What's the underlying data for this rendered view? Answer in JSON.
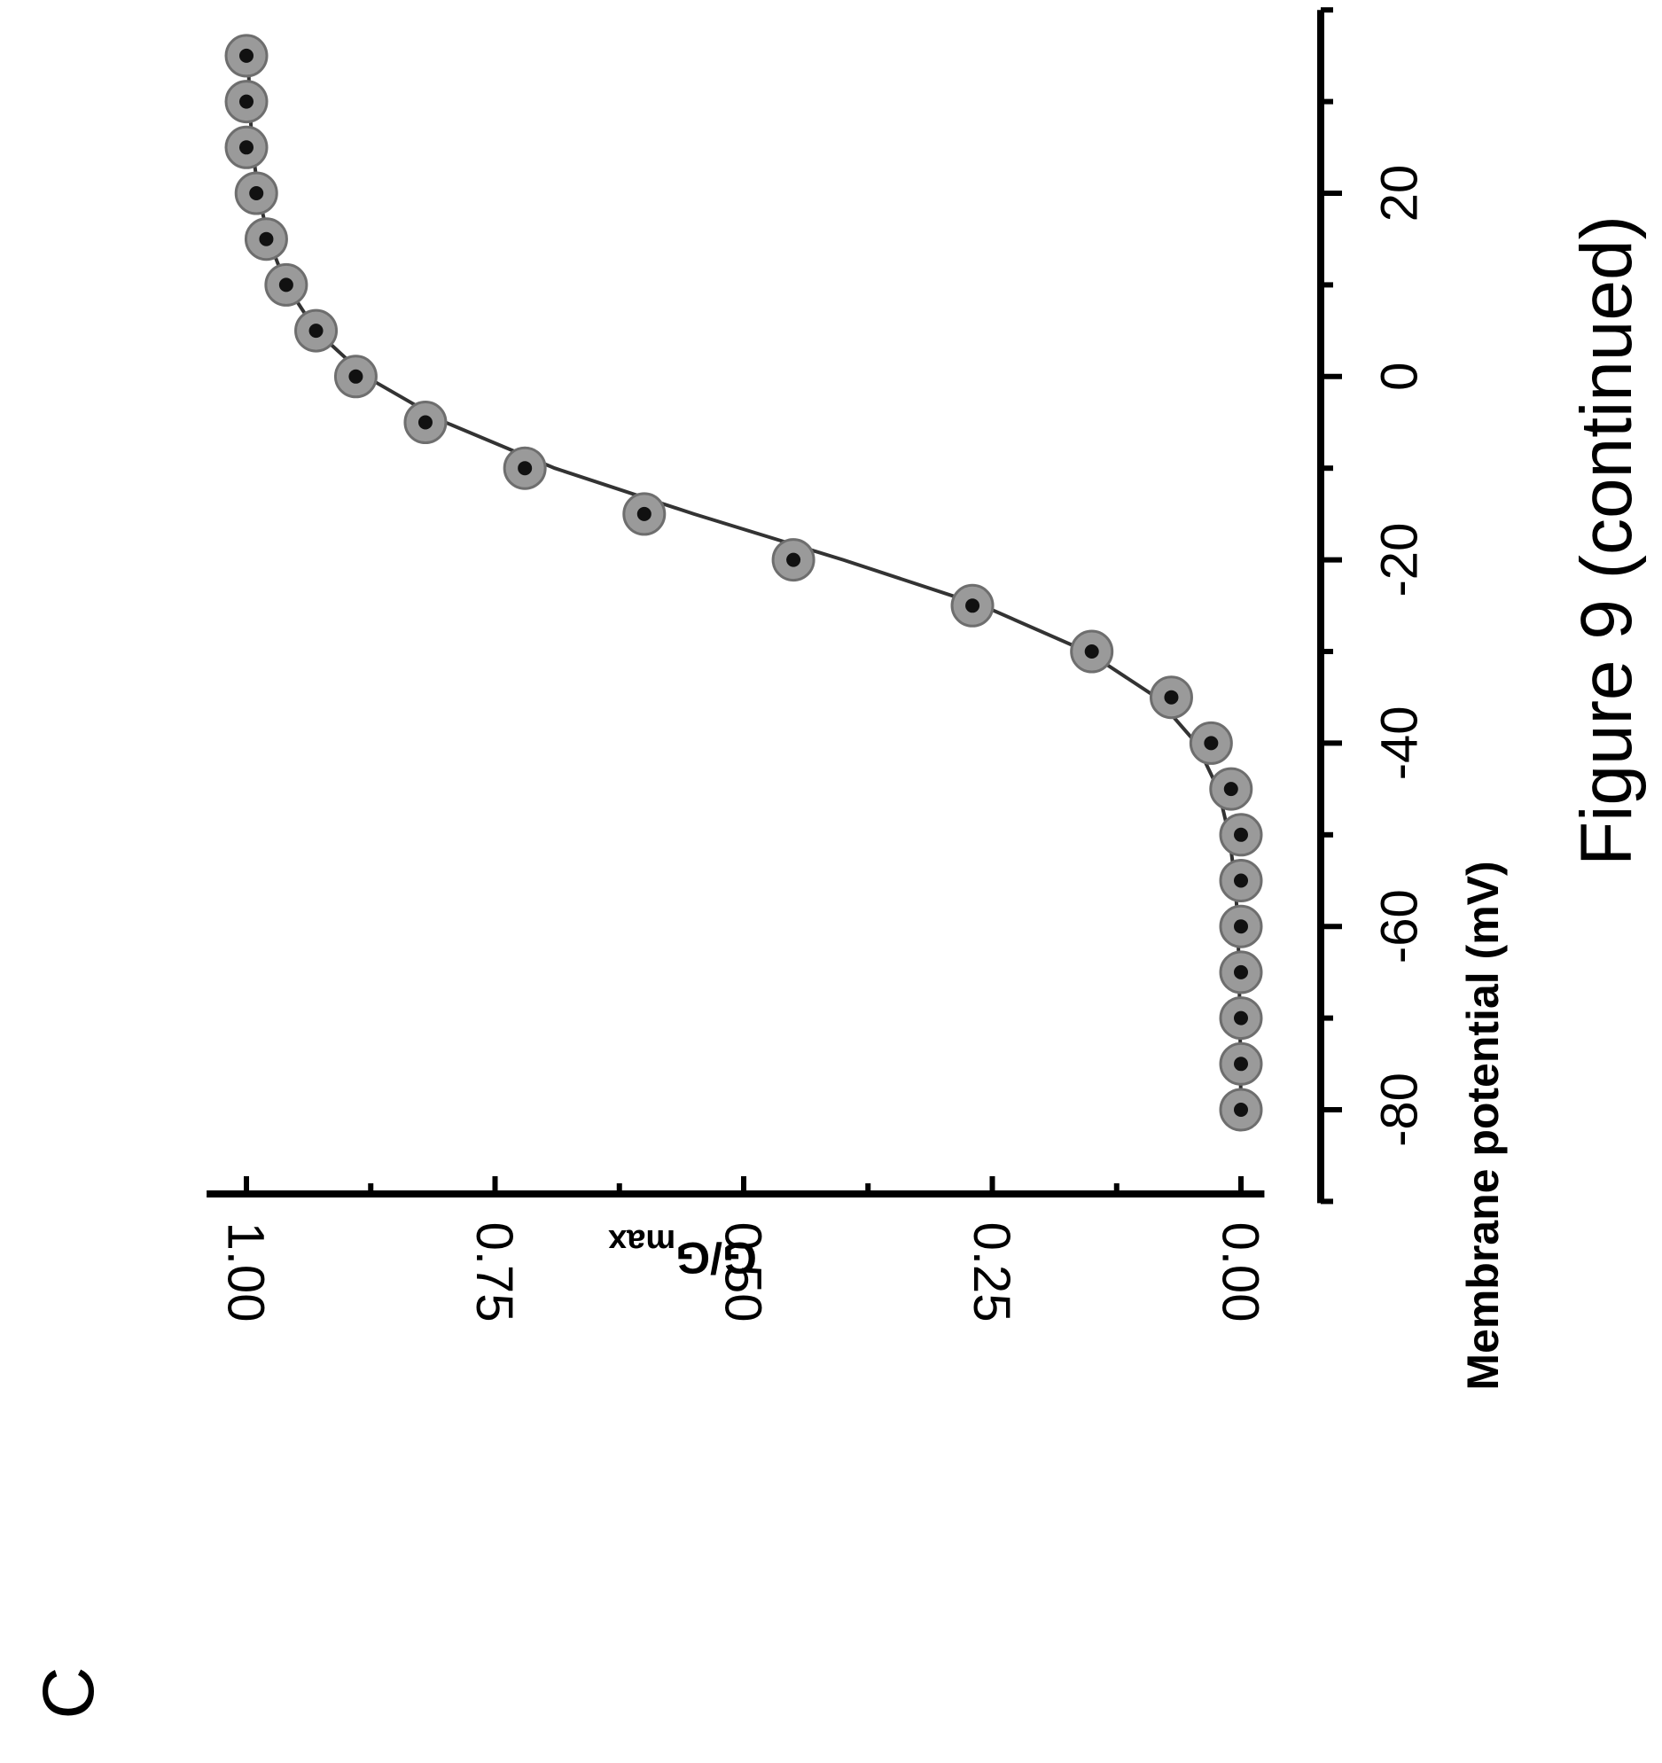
{
  "panel_label": "C",
  "caption": "Figure 9 (continued)",
  "chart_data": {
    "type": "scatter",
    "title": "",
    "xlabel": "Membrane potential (mV)",
    "ylabel": {
      "main": "G/G",
      "subscript": "max"
    },
    "xlim": [
      -90,
      40
    ],
    "ylim": [
      -0.02,
      1.04
    ],
    "x_ticks": [
      -80,
      -60,
      -40,
      -20,
      0,
      20
    ],
    "x_tick_labels": [
      "-80",
      "-60",
      "-40",
      "-20",
      "0",
      "20"
    ],
    "y_ticks": [
      0.0,
      0.25,
      0.5,
      0.75,
      1.0
    ],
    "y_tick_labels": [
      "0.00",
      "0.25",
      "0.50",
      "0.75",
      "1.00"
    ],
    "grid": false,
    "legend": "none",
    "orientation": "rotated-90-clockwise",
    "colors": {
      "marker_fill": "#9a9a9a",
      "marker_edge": "#6e6e6e",
      "marker_core": "#111111",
      "fit_line": "#333333",
      "axis": "#000000"
    },
    "series": [
      {
        "x": [
          -80,
          -75,
          -70,
          -65,
          -60,
          -55,
          -50,
          -45,
          -40,
          -35,
          -30,
          -25,
          -20,
          -15,
          -10,
          -5,
          0,
          5,
          10,
          15,
          20,
          25,
          30,
          35
        ],
        "y": [
          0.0,
          0.0,
          0.0,
          0.0,
          0.0,
          0.0,
          0.0,
          0.01,
          0.03,
          0.07,
          0.15,
          0.27,
          0.45,
          0.6,
          0.72,
          0.82,
          0.89,
          0.93,
          0.96,
          0.98,
          0.99,
          1.0,
          1.0,
          1.0
        ]
      }
    ],
    "fit": {
      "type": "boltzmann",
      "x": [
        -80,
        -70,
        -60,
        -55,
        -50,
        -45,
        -40,
        -35,
        -30,
        -25,
        -20,
        -15,
        -10,
        -5,
        0,
        5,
        10,
        15,
        20,
        25,
        30,
        35
      ],
      "y": [
        0.0,
        0.001,
        0.003,
        0.006,
        0.012,
        0.023,
        0.045,
        0.085,
        0.155,
        0.26,
        0.4,
        0.55,
        0.69,
        0.8,
        0.88,
        0.93,
        0.96,
        0.978,
        0.988,
        0.994,
        0.997,
        0.998
      ]
    }
  }
}
